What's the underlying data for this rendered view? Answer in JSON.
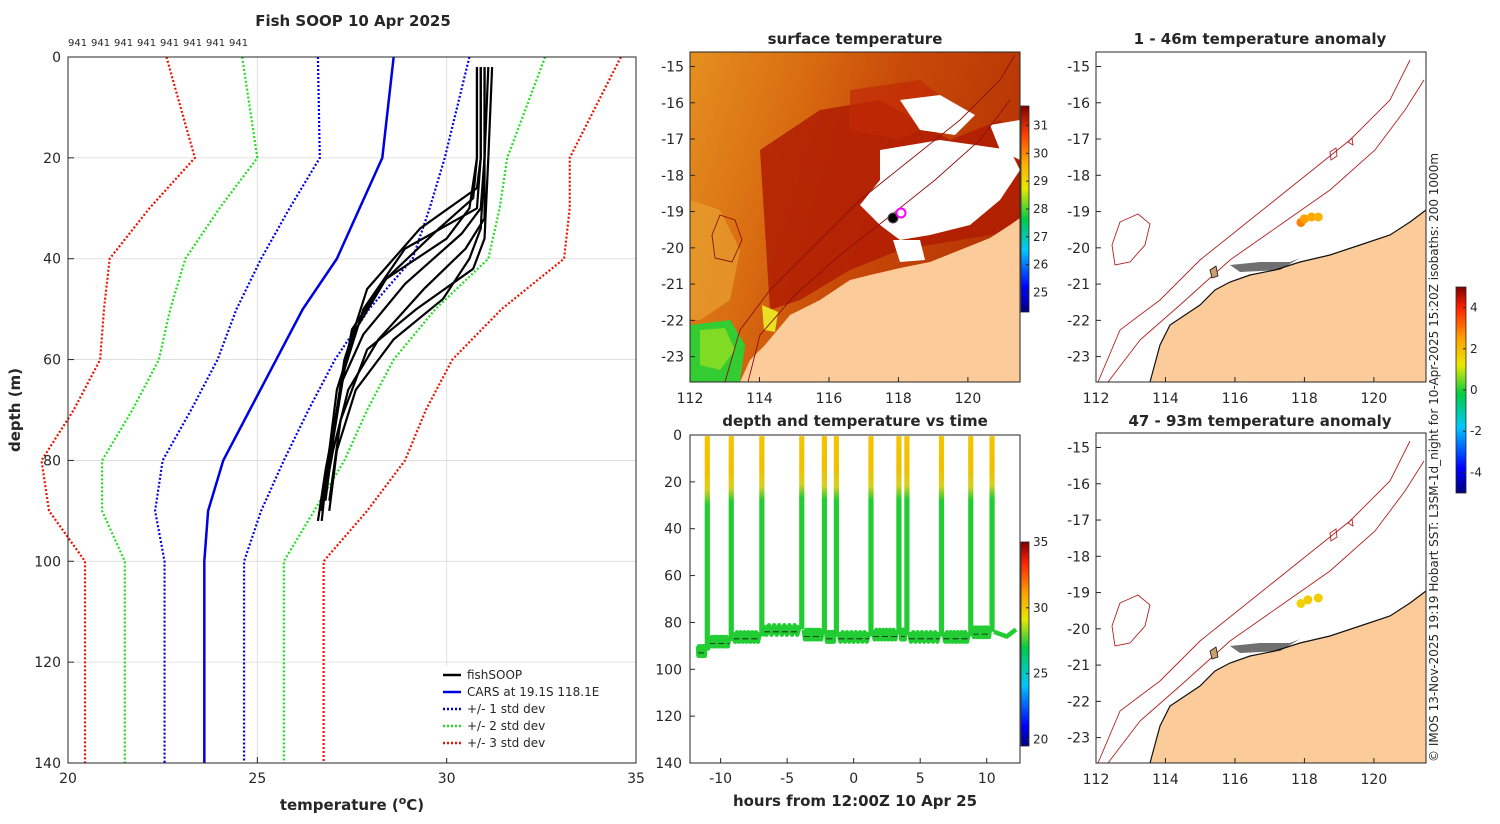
{
  "colors": {
    "fishsoop": "#000000",
    "cars": "#0000e6",
    "std1": "#0000e6",
    "std2": "#22dd22",
    "std3": "#ee1100",
    "land": "#fbcb9a",
    "coast_contour": "#b22222",
    "marker": "#ff00ff"
  },
  "chart_data": [
    {
      "type": "line",
      "name": "profile",
      "title": "Fish SOOP 10 Apr 2025",
      "xlabel": "temperature (°C)",
      "ylabel": "depth (m)",
      "xlim": [
        20,
        35
      ],
      "ylim": [
        0,
        140
      ],
      "xticks": [
        "20",
        "25",
        "30",
        "35"
      ],
      "yticks": [
        "0",
        "20",
        "40",
        "60",
        "80",
        "100",
        "120",
        "140"
      ],
      "top_labels": [
        "941",
        "941",
        "941",
        "941",
        "941",
        "941",
        "941",
        "941"
      ],
      "depth": [
        0,
        20,
        30,
        40,
        50,
        60,
        70,
        80,
        90,
        100,
        140
      ],
      "cars_mean": [
        28.6,
        28.3,
        27.7,
        27.1,
        26.2,
        25.5,
        24.8,
        24.1,
        23.7,
        23.6,
        23.6
      ],
      "cars_sd": [
        2.0,
        1.65,
        1.85,
        2.0,
        1.75,
        1.55,
        1.55,
        1.6,
        1.4,
        1.05,
        1.05
      ],
      "fishsoop_traces": [
        {
          "t": [
            31.0,
            31.0,
            30.9,
            30.4,
            28.9,
            27.8,
            27.2,
            27.0,
            26.8,
            26.7
          ],
          "d": [
            2,
            20,
            30,
            35,
            45,
            55,
            65,
            75,
            85,
            92
          ]
        },
        {
          "t": [
            30.8,
            30.8,
            30.7,
            29.8,
            28.4,
            27.6,
            27.1,
            26.9,
            26.7
          ],
          "d": [
            2,
            20,
            28,
            34,
            44,
            54,
            66,
            78,
            90
          ]
        },
        {
          "t": [
            31.1,
            31.0,
            31.0,
            30.5,
            29.4,
            28.2,
            27.4,
            27.0,
            26.7
          ],
          "d": [
            2,
            20,
            32,
            38,
            46,
            56,
            66,
            78,
            90
          ]
        },
        {
          "t": [
            30.9,
            30.9,
            30.8,
            29.3,
            27.9,
            27.3,
            27.1,
            26.8,
            26.6
          ],
          "d": [
            2,
            20,
            26,
            34,
            46,
            60,
            70,
            82,
            92
          ]
        },
        {
          "t": [
            31.0,
            31.0,
            30.9,
            30.6,
            29.9,
            28.6,
            27.6,
            27.1,
            26.9
          ],
          "d": [
            2,
            20,
            34,
            40,
            48,
            56,
            66,
            78,
            90
          ]
        },
        {
          "t": [
            30.8,
            30.8,
            30.6,
            30.0,
            28.4,
            27.5,
            27.1,
            26.8
          ],
          "d": [
            2,
            20,
            30,
            36,
            44,
            54,
            70,
            88
          ]
        },
        {
          "t": [
            31.2,
            31.1,
            31.0,
            30.7,
            29.2,
            27.9,
            27.2,
            26.9
          ],
          "d": [
            2,
            20,
            36,
            42,
            50,
            58,
            72,
            88
          ]
        },
        {
          "t": [
            30.9,
            30.9,
            30.8,
            28.9,
            27.8,
            27.3,
            27.0,
            26.7
          ],
          "d": [
            2,
            20,
            30,
            38,
            50,
            62,
            76,
            90
          ]
        }
      ]
    },
    {
      "type": "heatmap",
      "name": "surface_temperature",
      "title": "surface temperature",
      "xticks": [
        "112",
        "114",
        "116",
        "118",
        "120"
      ],
      "yticks": [
        "-15",
        "-16",
        "-17",
        "-18",
        "-19",
        "-20",
        "-21",
        "-22",
        "-23"
      ],
      "lon_range": [
        112,
        121.5
      ],
      "lat_range": [
        -23.7,
        -14.6
      ],
      "colorbar_ticks": [
        "31",
        "30",
        "29",
        "28",
        "27",
        "26",
        "25"
      ],
      "colorbar_range": [
        24.3,
        31.7
      ],
      "station": {
        "lon": 118.1,
        "lat": -19.1
      }
    },
    {
      "type": "scatter",
      "name": "depth_vs_time",
      "title": "depth and temperature vs time",
      "xlabel": "hours from 12:00Z 10 Apr 25",
      "xticks": [
        "-10",
        "-5",
        "0",
        "5",
        "10"
      ],
      "yticks": [
        "0",
        "20",
        "40",
        "60",
        "80",
        "100",
        "120",
        "140"
      ],
      "xlim": [
        -12.3,
        12.5
      ],
      "ylim": [
        0,
        140
      ],
      "profile_times_h": [
        -11.0,
        -9.2,
        -6.9,
        -3.9,
        -2.2,
        -1.3,
        1.3,
        3.4,
        4.0,
        6.6,
        8.8,
        10.4
      ],
      "bottom_depth_m": [
        92,
        88,
        86,
        83,
        85,
        86,
        86,
        85,
        85,
        86,
        86,
        84
      ],
      "colorbar_ticks": [
        "35",
        "30",
        "25",
        "20"
      ],
      "colorbar_range": [
        19.5,
        35
      ]
    },
    {
      "type": "scatter",
      "name": "anomaly_1_46",
      "title": "1 - 46m temperature anomaly",
      "xticks": [
        "112",
        "114",
        "116",
        "118",
        "120"
      ],
      "yticks": [
        "-15",
        "-16",
        "-17",
        "-18",
        "-19",
        "-20",
        "-21",
        "-22",
        "-23"
      ],
      "points": [
        {
          "lon": 117.9,
          "lat": -19.3,
          "anomaly": 2.9
        },
        {
          "lon": 118.0,
          "lat": -19.2,
          "anomaly": 2.5
        },
        {
          "lon": 118.2,
          "lat": -19.15,
          "anomaly": 2.3
        },
        {
          "lon": 118.4,
          "lat": -19.15,
          "anomaly": 2.2
        }
      ]
    },
    {
      "type": "scatter",
      "name": "anomaly_47_93",
      "title": "47 - 93m temperature anomaly",
      "xticks": [
        "112",
        "114",
        "116",
        "118",
        "120"
      ],
      "yticks": [
        "-15",
        "-16",
        "-17",
        "-18",
        "-19",
        "-20",
        "-21",
        "-22",
        "-23"
      ],
      "points": [
        {
          "lon": 117.9,
          "lat": -19.3,
          "anomaly": 1.6
        },
        {
          "lon": 118.1,
          "lat": -19.2,
          "anomaly": 1.7
        },
        {
          "lon": 118.4,
          "lat": -19.15,
          "anomaly": 1.7
        }
      ],
      "colorbar_ticks": [
        "4",
        "2",
        "0",
        "-2",
        "-4"
      ],
      "colorbar_range": [
        -5,
        5
      ]
    }
  ],
  "legend": {
    "items": [
      "fishSOOP",
      "CARS at 19.1S 118.1E",
      "+/- 1 std dev",
      "+/- 2 std dev",
      "+/- 3 std dev"
    ]
  },
  "credit": "© IMOS 13-Nov-2025 19:19 Hobart SST: L3SM-1d_night for 10-Apr-2025 15:20Z isobaths: 200  1000m"
}
